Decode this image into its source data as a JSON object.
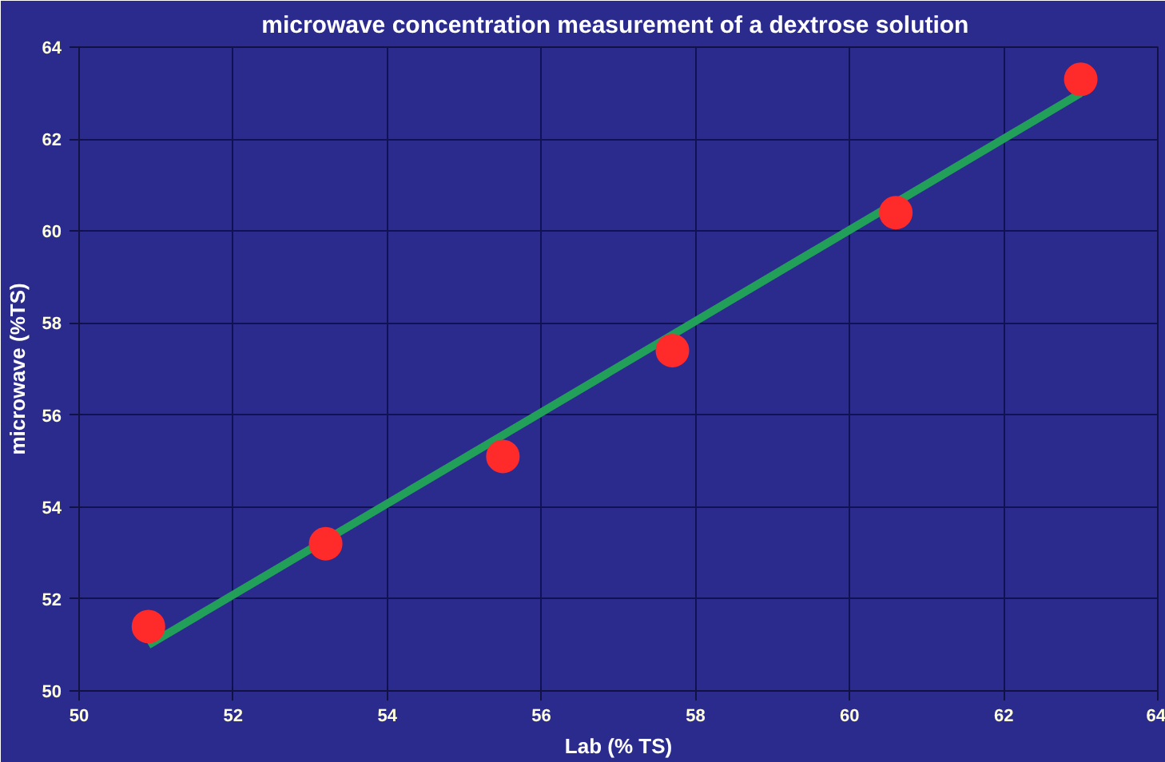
{
  "chart_data": {
    "type": "scatter",
    "title": "microwave concentration measurement  of a dextrose solution",
    "xlabel": "Lab (% TS)",
    "ylabel": "microwave (%TS)",
    "x": [
      50.9,
      53.2,
      55.5,
      57.7,
      60.6,
      63.0
    ],
    "series": [
      {
        "color": "#ff2a2a",
        "marker": "circle",
        "values": [
          51.4,
          53.2,
          55.1,
          57.4,
          60.4,
          63.3
        ]
      },
      {
        "type": "line",
        "color": "#22a05a",
        "x": [
          50.9,
          63.0
        ],
        "values": [
          51.0,
          63.0
        ]
      }
    ],
    "xlim": [
      50,
      64
    ],
    "ylim": [
      50,
      64
    ],
    "xticks": [
      50,
      52,
      54,
      56,
      58,
      60,
      62,
      64
    ],
    "yticks": [
      50,
      52,
      54,
      56,
      58,
      60,
      62,
      64
    ],
    "grid": true
  }
}
